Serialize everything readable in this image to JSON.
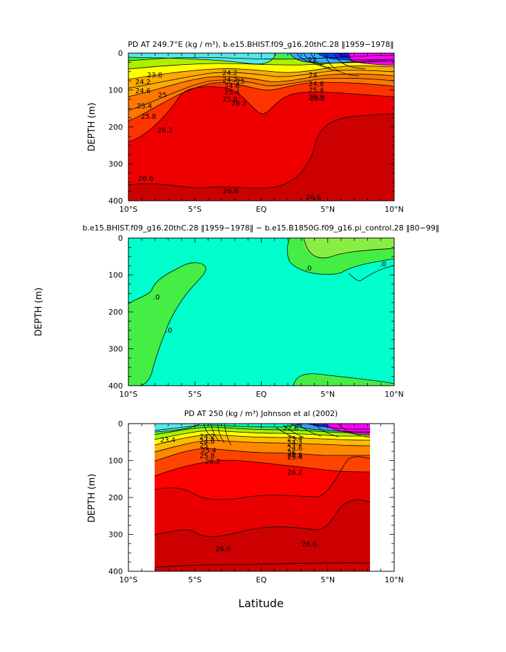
{
  "chart_data": [
    {
      "type": "contour",
      "title": "PD AT 249.7°E (kg / m³), b.e15.BHIST.f09_g16.20thC.28 ‖1959−1978‖",
      "ylabel": "DEPTH (m)",
      "x_ticks": [
        "10°S",
        "5°S",
        "EQ",
        "5°N",
        "10°N"
      ],
      "y_ticks": [
        "0",
        "100",
        "200",
        "300",
        "400"
      ],
      "xlim": [
        -10,
        10
      ],
      "ylim": [
        400,
        0
      ],
      "contour_labels": [
        "23.8",
        "24.2",
        "24.2",
        "24.6",
        "25",
        "25.4",
        "25.8",
        "26.2",
        "26.2",
        "24.2",
        "24.6",
        "25",
        "25.4",
        "25.8",
        "24",
        "24.6",
        "25.4",
        "25.8",
        "26.2",
        "22",
        "26.6",
        "26.6",
        "26.6"
      ]
    },
    {
      "type": "contour",
      "title": "b.e15.BHIST.f09_g16.20thC.28 ‖1959−1978‖ − b.e15.B1850G.f09_g16.pi_control.28 ‖80−99‖",
      "ylabel": "DEPTH (m)",
      "x_ticks": [
        "10°S",
        "5°S",
        "EQ",
        "5°N",
        "10°N"
      ],
      "y_ticks": [
        "0",
        "100",
        "200",
        "300",
        "400"
      ],
      "xlim": [
        -10,
        10
      ],
      "ylim": [
        400,
        0
      ],
      "contour_labels": [
        ".0",
        ".0",
        ".0",
        ".0"
      ]
    },
    {
      "type": "contour",
      "title": "PD AT 250 (kg / m³) Johnson et al (2002)",
      "ylabel": "DEPTH (m)",
      "xlabel": "Latitude",
      "x_ticks": [
        "10°S",
        "5°S",
        "EQ",
        "5°N",
        "10°N"
      ],
      "y_ticks": [
        "0",
        "100",
        "200",
        "300",
        "400"
      ],
      "xlim": [
        -10,
        10
      ],
      "ylim": [
        400,
        0
      ],
      "data_extent_lat": [
        -8,
        8.2
      ],
      "contour_labels": [
        "23.4",
        "24.2",
        "24.6",
        "25",
        "25.4",
        "25.8",
        "26.2",
        "23.4",
        "24.2",
        "24.6",
        "25",
        "25.4",
        "25.8",
        "26.2",
        "26.6",
        "26.6",
        "22.6"
      ]
    }
  ],
  "colors": {
    "cyan": "#4de8e8",
    "aqua": "#00ffcc",
    "green": "#44ee44",
    "yellow_green": "#b8f000",
    "yellow": "#ffff00",
    "orange": "#ff9900",
    "orange_red": "#ff5500",
    "red": "#ee0000",
    "dark_red": "#cc0000",
    "blue": "#0033ff",
    "magenta": "#ff00ff"
  }
}
